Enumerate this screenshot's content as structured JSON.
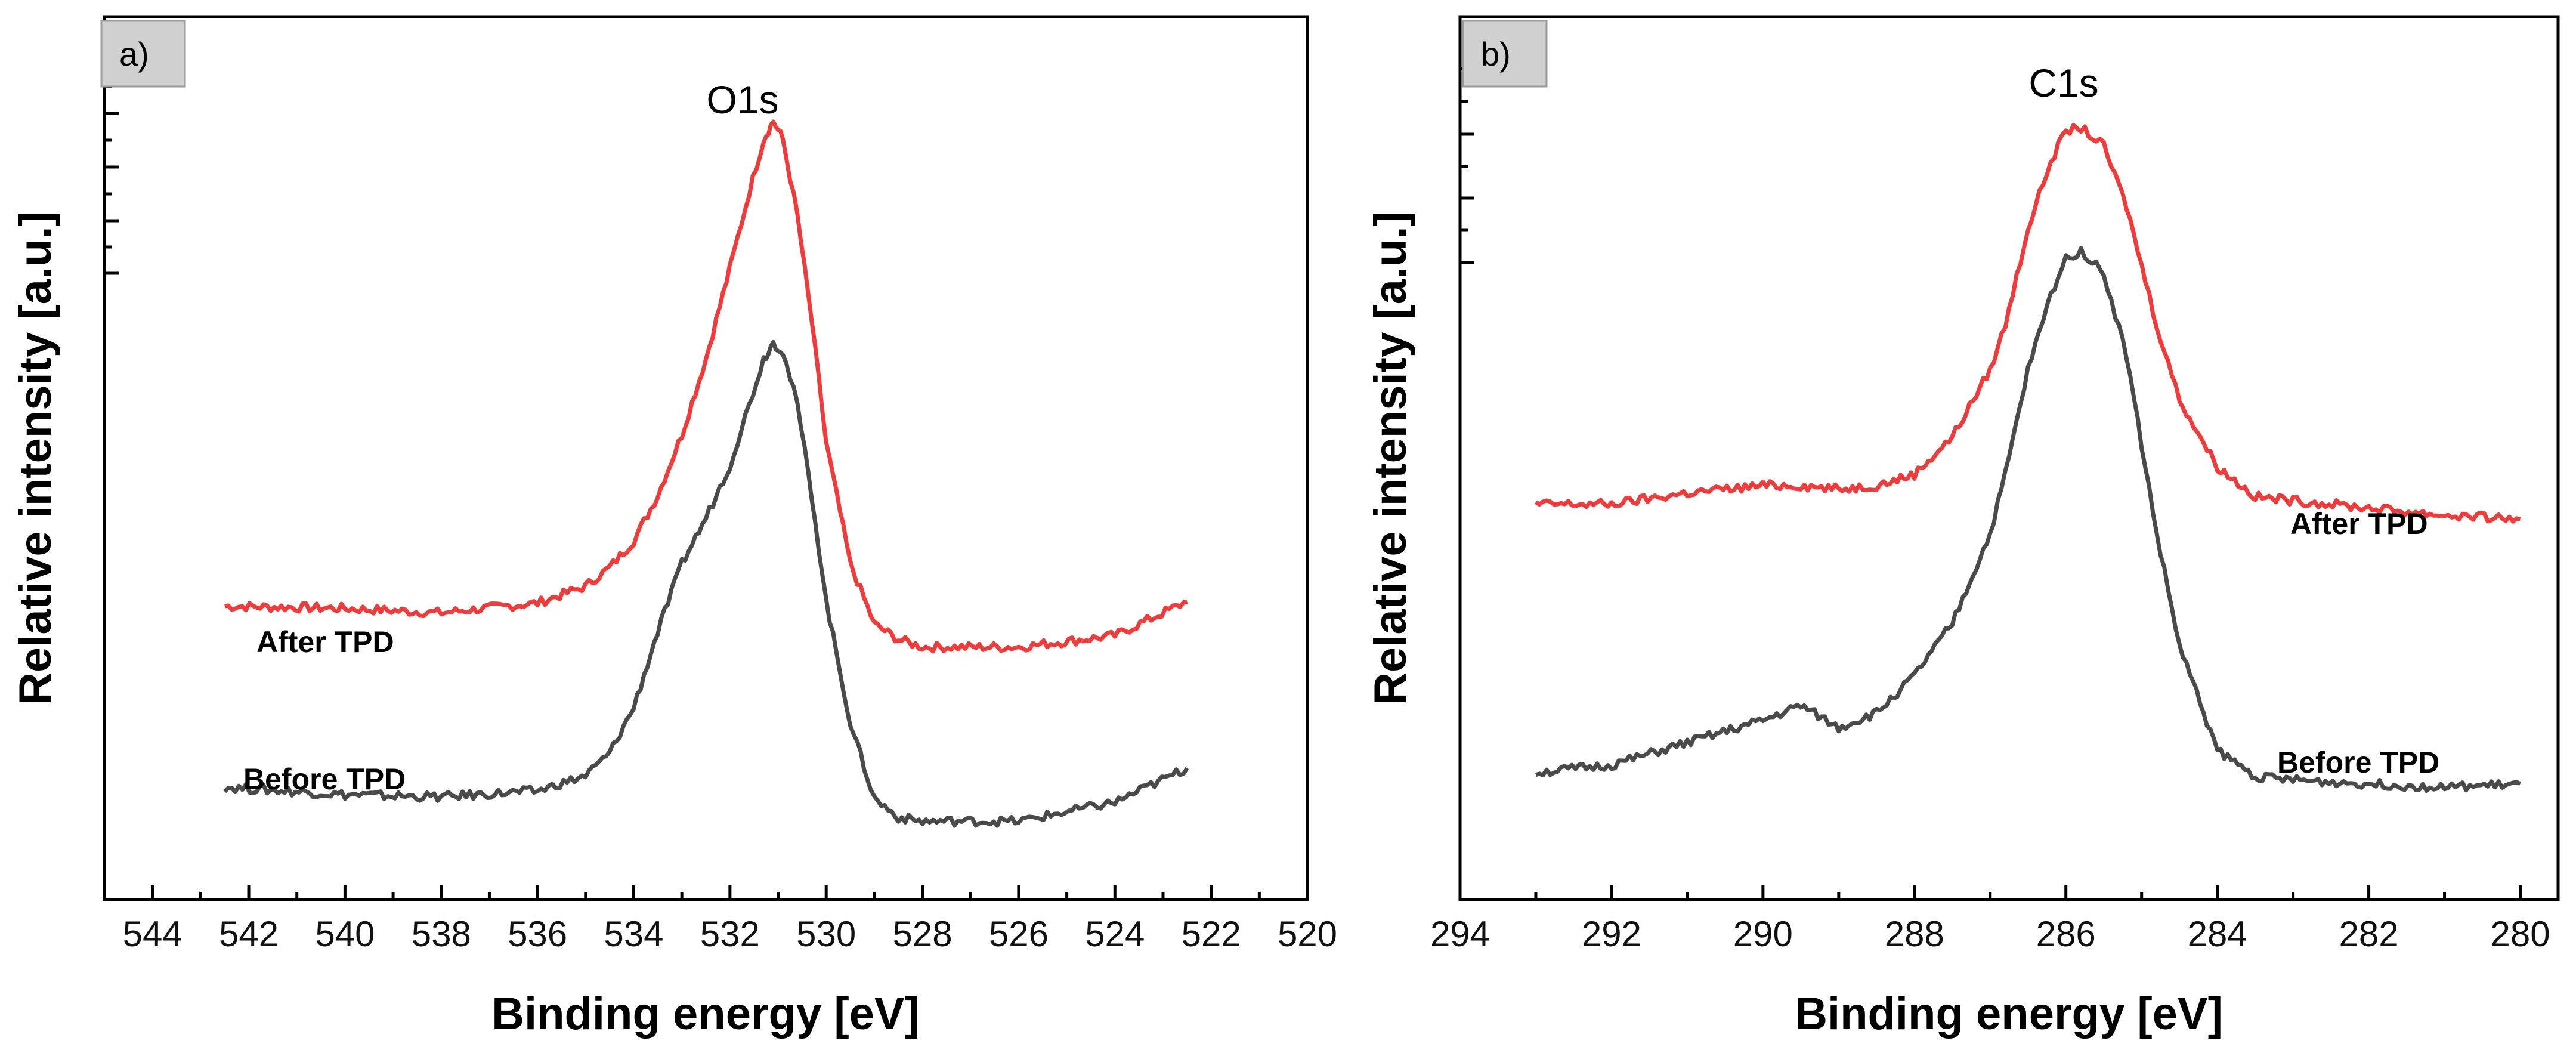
{
  "chart_data": [
    {
      "type": "line",
      "panel_label": "a)",
      "title": "O1s",
      "xlabel": "Binding energy [eV]",
      "ylabel": "Relative intensity [a.u.]",
      "x_reversed": true,
      "xlim": [
        545,
        520
      ],
      "ylim": [
        0,
        1
      ],
      "xticks": [
        544,
        542,
        540,
        538,
        536,
        534,
        532,
        530,
        528,
        526,
        524,
        522,
        520
      ],
      "xtick_labels": [
        "544",
        "542",
        "540",
        "538",
        "536",
        "534",
        "532",
        "530",
        "528",
        "526",
        "524",
        "522",
        "520"
      ],
      "series": [
        {
          "name": "After TPD",
          "color": "#ee3b3b",
          "x": [
            542.5,
            540,
            538,
            536,
            535,
            534.5,
            534,
            533.5,
            533,
            532.5,
            532,
            531.6,
            531.3,
            531.1,
            530.9,
            530.6,
            530.3,
            530,
            529.5,
            529,
            528.5,
            528,
            526,
            524,
            522.5
          ],
          "y": [
            0.334,
            0.331,
            0.325,
            0.338,
            0.36,
            0.385,
            0.42,
            0.48,
            0.56,
            0.66,
            0.78,
            0.88,
            0.95,
            0.974,
            0.95,
            0.85,
            0.71,
            0.55,
            0.39,
            0.31,
            0.29,
            0.28,
            0.28,
            0.295,
            0.34
          ]
        },
        {
          "name": "Before TPD",
          "color": "#4a4a4a",
          "x": [
            542.5,
            540,
            538,
            536,
            535,
            534.5,
            534,
            533.5,
            533,
            532.5,
            532,
            531.6,
            531.3,
            531.1,
            530.9,
            530.6,
            530.3,
            530,
            529.5,
            529,
            528.5,
            528,
            526,
            524,
            522.5
          ],
          "y": [
            0.095,
            0.085,
            0.082,
            0.09,
            0.11,
            0.14,
            0.2,
            0.3,
            0.39,
            0.45,
            0.52,
            0.6,
            0.66,
            0.682,
            0.67,
            0.6,
            0.48,
            0.34,
            0.18,
            0.08,
            0.055,
            0.05,
            0.05,
            0.075,
            0.12
          ]
        }
      ],
      "annotations": [
        {
          "text": "After TPD",
          "series": "After TPD"
        },
        {
          "text": "Before TPD",
          "series": "Before TPD"
        }
      ]
    },
    {
      "type": "line",
      "panel_label": "b)",
      "title": "C1s",
      "xlabel": "Binding energy [eV]",
      "ylabel": "Relative intensity [a.u.]",
      "x_reversed": true,
      "xlim": [
        294,
        279.5
      ],
      "ylim": [
        0,
        1
      ],
      "xticks": [
        294,
        292,
        290,
        288,
        286,
        284,
        282,
        280
      ],
      "xtick_labels": [
        "294",
        "292",
        "290",
        "288",
        "286",
        "284",
        "282",
        "280"
      ],
      "series": [
        {
          "name": "After TPD",
          "color": "#ee3b3b",
          "x": [
            293,
            292,
            291,
            290,
            289.5,
            289,
            288.5,
            288,
            287.5,
            287,
            286.8,
            286.5,
            286.2,
            286,
            285.8,
            285.5,
            285.2,
            285,
            284.8,
            284.5,
            284,
            283.5,
            283,
            282,
            281,
            280
          ],
          "y": [
            0.46,
            0.46,
            0.475,
            0.485,
            0.485,
            0.48,
            0.485,
            0.5,
            0.55,
            0.64,
            0.7,
            0.83,
            0.92,
            0.96,
            0.965,
            0.94,
            0.86,
            0.78,
            0.7,
            0.6,
            0.51,
            0.47,
            0.465,
            0.455,
            0.445,
            0.44
          ]
        },
        {
          "name": "Before TPD",
          "color": "#4a4a4a",
          "x": [
            293,
            292,
            291,
            290,
            289.5,
            289,
            288.5,
            288,
            287.5,
            287,
            286.8,
            286.5,
            286.2,
            286,
            285.8,
            285.5,
            285.2,
            285,
            284.8,
            284.5,
            284,
            283.5,
            283,
            282,
            281,
            280
          ],
          "y": [
            0.1,
            0.11,
            0.14,
            0.17,
            0.19,
            0.16,
            0.18,
            0.23,
            0.3,
            0.42,
            0.5,
            0.64,
            0.74,
            0.79,
            0.8,
            0.77,
            0.66,
            0.54,
            0.42,
            0.27,
            0.13,
            0.095,
            0.09,
            0.085,
            0.08,
            0.085
          ]
        }
      ],
      "annotations": [
        {
          "text": "After TPD",
          "series": "After TPD"
        },
        {
          "text": "Before TPD",
          "series": "Before TPD"
        }
      ]
    }
  ]
}
